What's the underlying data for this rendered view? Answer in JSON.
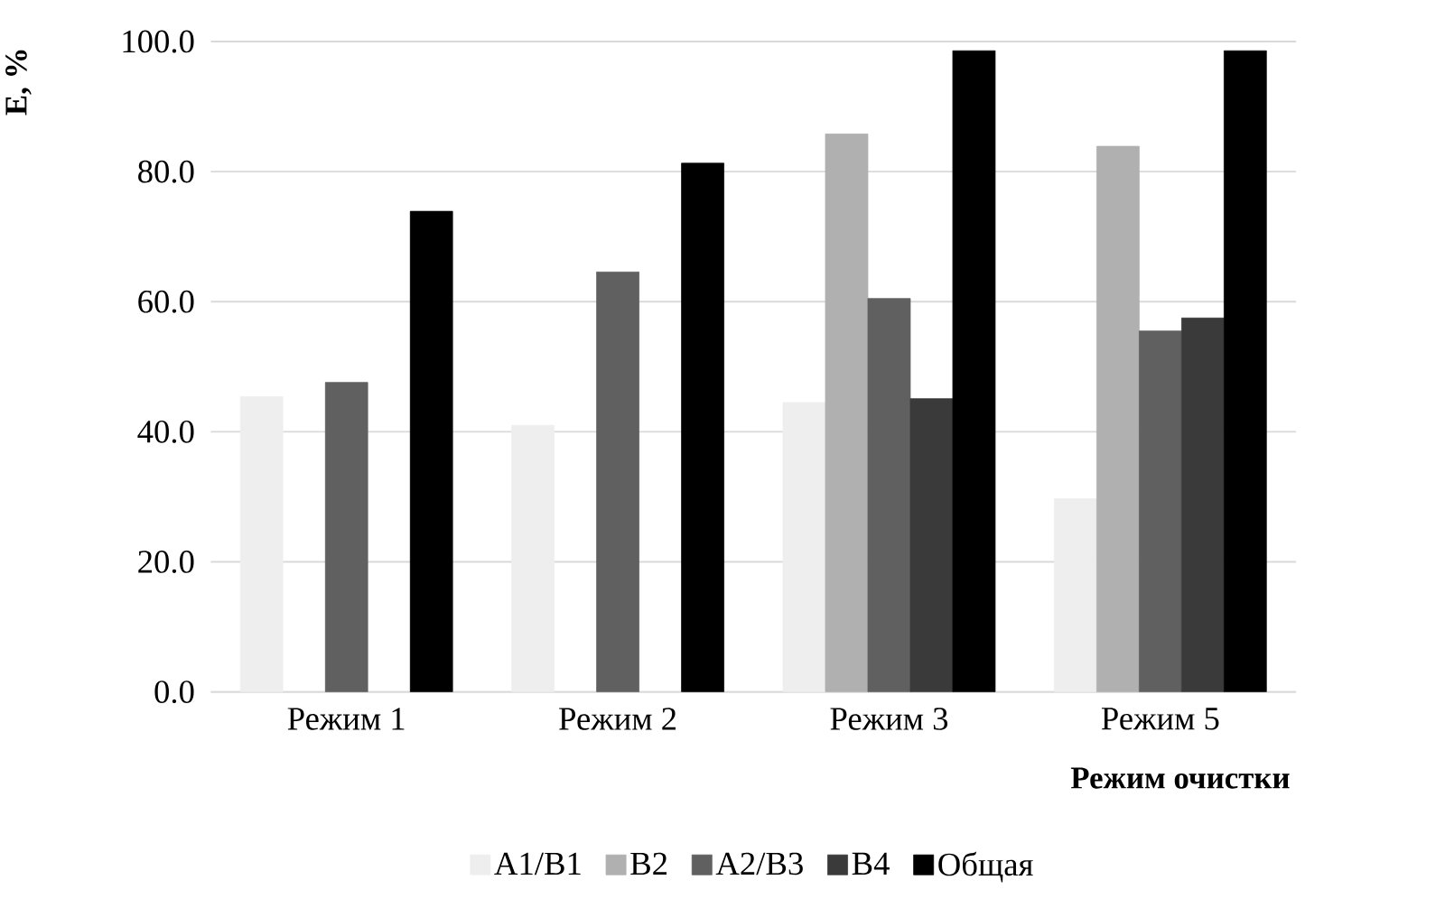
{
  "chart_data": {
    "type": "bar",
    "xlabel": "Режим очистки",
    "ylabel": "E, %",
    "categories": [
      "Режим 1",
      "Режим 2",
      "Режим 3",
      "Режим 5"
    ],
    "series": [
      {
        "name": "A1/B1",
        "color": "#eeeeee",
        "values": [
          45.4,
          41.0,
          44.5,
          29.7
        ]
      },
      {
        "name": "B2",
        "color": "#b0b0b0",
        "values": [
          null,
          null,
          85.8,
          83.9
        ]
      },
      {
        "name": "A2/B3",
        "color": "#606060",
        "values": [
          47.6,
          64.6,
          60.5,
          55.5
        ]
      },
      {
        "name": "B4",
        "color": "#3a3a3a",
        "values": [
          null,
          null,
          45.1,
          57.5
        ]
      },
      {
        "name": "Общая",
        "color": "#000000",
        "values": [
          73.9,
          81.3,
          98.6,
          98.6
        ]
      }
    ],
    "ylim": [
      0,
      100
    ],
    "yticks": [
      {
        "value": 0,
        "label": "0.0"
      },
      {
        "value": 20,
        "label": "20.0"
      },
      {
        "value": 40,
        "label": "40.0"
      },
      {
        "value": 60,
        "label": "60.0"
      },
      {
        "value": 80,
        "label": "80.0"
      },
      {
        "value": 100,
        "label": "100.0"
      }
    ],
    "grid": "y",
    "legend": "bottom"
  }
}
